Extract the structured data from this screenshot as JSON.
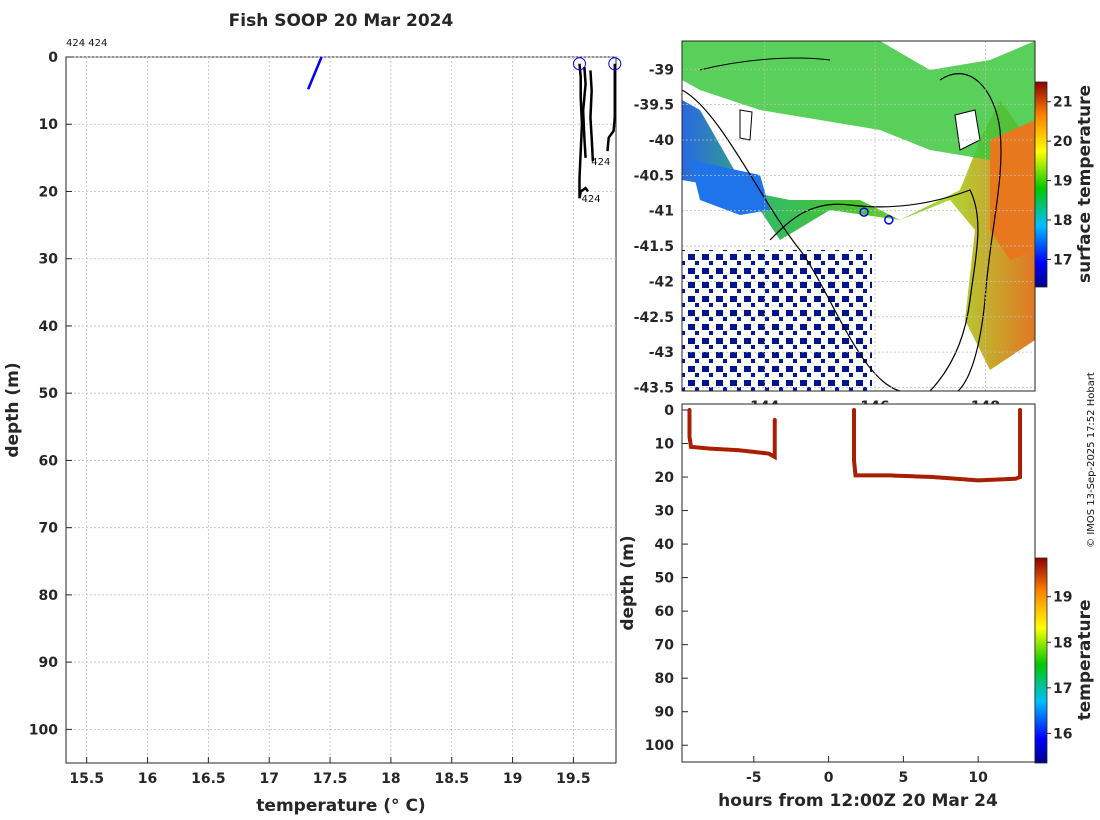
{
  "title": "Fish SOOP 20 Mar 2024",
  "credit": "© IMOS 13-Sep-2025 17:52 Hobart",
  "chart_data": [
    {
      "type": "line",
      "name": "profile",
      "xlabel": "temperature (° C)",
      "ylabel": "depth (m)",
      "xlim": [
        15.33,
        19.85
      ],
      "ylim": [
        105,
        0
      ],
      "xticks": [
        15.5,
        16,
        16.5,
        17,
        17.5,
        18,
        18.5,
        19,
        19.5
      ],
      "xtick_labels": [
        "15.5",
        "16",
        "16.5",
        "17",
        "17.5",
        "18",
        "18.5",
        "19",
        "19.5"
      ],
      "yticks": [
        0,
        10,
        20,
        30,
        40,
        50,
        60,
        70,
        80,
        90,
        100
      ],
      "ytick_labels": [
        "0",
        "10",
        "20",
        "30",
        "40",
        "50",
        "60",
        "70",
        "80",
        "90",
        "100"
      ],
      "grid": true,
      "top_note": "424 424",
      "series": [
        {
          "color": "#0000ff",
          "points": [
            [
              17.32,
              4.8
            ],
            [
              17.43,
              0
            ]
          ]
        },
        {
          "color": "#000000",
          "points": [
            [
              19.55,
              1
            ],
            [
              19.56,
              3
            ],
            [
              19.56,
              6
            ],
            [
              19.57,
              10
            ],
            [
              19.56,
              14
            ],
            [
              19.55,
              18
            ],
            [
              19.55,
              21
            ],
            [
              19.56,
              20
            ],
            [
              19.6,
              19.5
            ],
            [
              19.62,
              20
            ]
          ]
        },
        {
          "color": "#000000",
          "points": [
            [
              19.59,
              1.5
            ],
            [
              19.6,
              4
            ],
            [
              19.58,
              8
            ],
            [
              19.59,
              12
            ],
            [
              19.6,
              15
            ]
          ]
        },
        {
          "color": "#000000",
          "points": [
            [
              19.64,
              2
            ],
            [
              19.65,
              5
            ],
            [
              19.64,
              9
            ],
            [
              19.65,
              12
            ],
            [
              19.66,
              15.5
            ]
          ]
        },
        {
          "color": "#000000",
          "points": [
            [
              19.84,
              1
            ],
            [
              19.84,
              5
            ],
            [
              19.84,
              9
            ],
            [
              19.83,
              11
            ],
            [
              19.79,
              12
            ],
            [
              19.78,
              14
            ]
          ]
        }
      ],
      "markers": [
        [
          19.55,
          1
        ],
        [
          19.84,
          1
        ]
      ],
      "labels": [
        {
          "text": "424",
          "x": 19.55,
          "y": 21
        },
        {
          "text": "424",
          "x": 19.63,
          "y": 15.5
        }
      ]
    },
    {
      "type": "heatmap",
      "name": "map",
      "xlim": [
        142.5,
        148.9
      ],
      "ylim": [
        -43.55,
        -38.6
      ],
      "xticks": [
        144,
        146,
        148
      ],
      "xtick_labels": [
        "144",
        "146",
        "148"
      ],
      "yticks": [
        -39,
        -39.5,
        -40,
        -40.5,
        -41,
        -41.5,
        -42,
        -42.5,
        -43,
        -43.5
      ],
      "ytick_labels": [
        "-39",
        "-39.5",
        "-40",
        "-40.5",
        "-41",
        "-41.5",
        "-42",
        "-42.5",
        "-43",
        "-43.5"
      ],
      "grid": true,
      "colorbar": {
        "label": "surface temperature",
        "ticks": [
          17,
          18,
          19,
          20,
          21
        ],
        "tick_labels": [
          "17",
          "18",
          "19",
          "20",
          "21"
        ],
        "range": [
          16.3,
          21.5
        ]
      },
      "markers": [
        [
          145.8,
          -41.02
        ],
        [
          146.25,
          -41.13
        ]
      ]
    },
    {
      "type": "scatter",
      "name": "timeseries",
      "xlabel": "hours from 12:00Z 20 Mar 24",
      "ylabel": "depth (m)",
      "xlim": [
        -9.8,
        13.8
      ],
      "ylim": [
        105,
        0
      ],
      "xticks": [
        -5,
        0,
        5,
        10
      ],
      "xtick_labels": [
        "-5",
        "0",
        "5",
        "10"
      ],
      "yticks": [
        0,
        10,
        20,
        30,
        40,
        50,
        60,
        70,
        80,
        90,
        100
      ],
      "ytick_labels": [
        "0",
        "10",
        "20",
        "30",
        "40",
        "50",
        "60",
        "70",
        "80",
        "90",
        "100"
      ],
      "colorbar": {
        "label": "temperature",
        "ticks": [
          16,
          17,
          18,
          19
        ],
        "tick_labels": [
          "16",
          "17",
          "18",
          "19"
        ],
        "range": [
          15.35,
          19.85
        ]
      },
      "segments": [
        {
          "x": [
            -9.3,
            -9.3,
            -9.2,
            -8,
            -6,
            -4,
            -3.6,
            -3.6
          ],
          "y": [
            0,
            8,
            11,
            11.5,
            12,
            13,
            14,
            3
          ],
          "temp": 19.6
        },
        {
          "x": [
            1.7,
            1.7,
            1.8,
            4,
            7,
            10,
            12.5,
            12.8,
            12.8
          ],
          "y": [
            0,
            15,
            19.5,
            19.5,
            20,
            21,
            20.5,
            20,
            0
          ],
          "temp": 19.4
        }
      ]
    }
  ]
}
